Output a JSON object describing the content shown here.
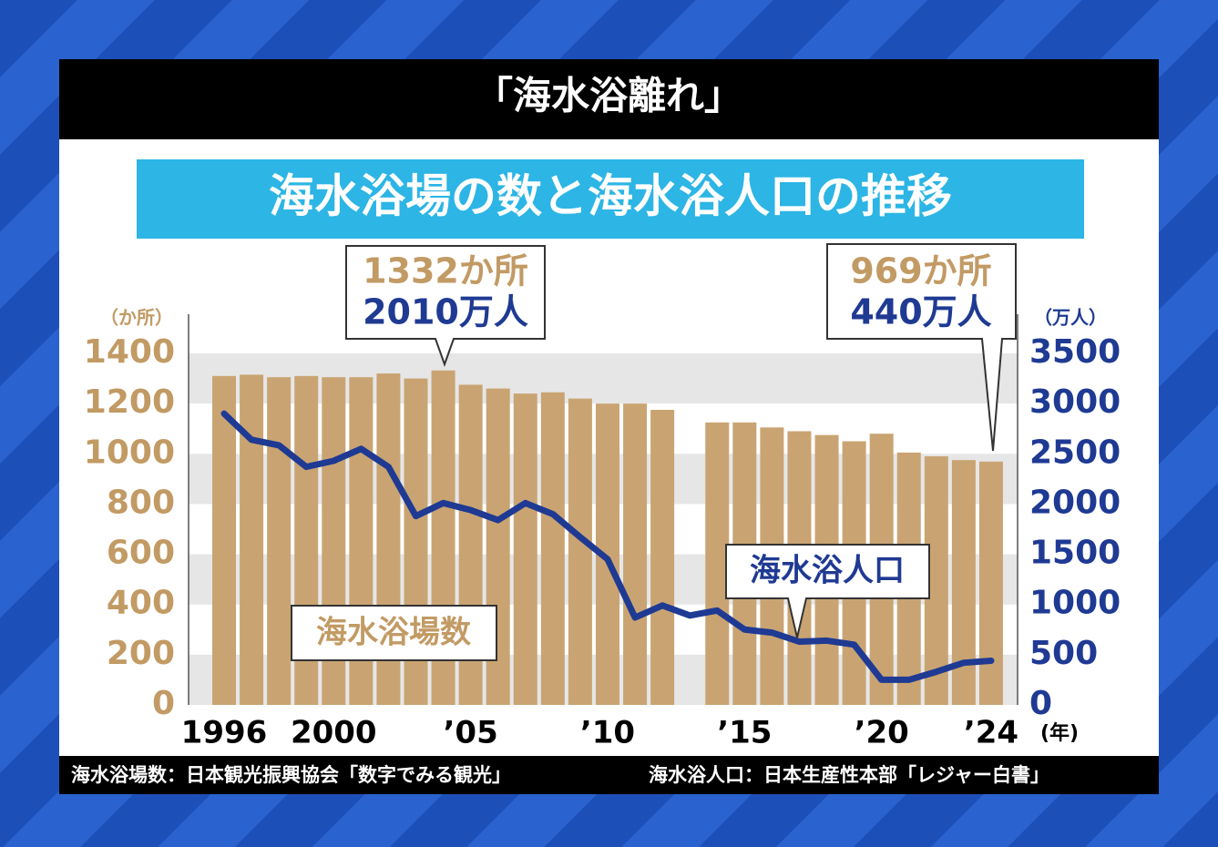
{
  "header": {
    "title": "「海水浴離れ」"
  },
  "chart_data": {
    "type": "bar",
    "title": "海水浴場の数と海水浴人口の推移",
    "categories": [
      "1996",
      null,
      null,
      null,
      "2000",
      null,
      null,
      null,
      null,
      "’05",
      null,
      null,
      null,
      null,
      "’10",
      null,
      null,
      null,
      null,
      "’15",
      null,
      null,
      null,
      null,
      "’20",
      null,
      null,
      null,
      "’24"
    ],
    "x_unit": "(年)",
    "y_unit": "（か所）",
    "y2_unit": "（万人）",
    "series": [
      {
        "name": "海水浴場数",
        "type": "bar",
        "color": "#c9a472",
        "values": [
          1310,
          1315,
          1305,
          1310,
          1305,
          1305,
          1320,
          1300,
          1332,
          1275,
          1260,
          1240,
          1245,
          1220,
          1200,
          1200,
          1175,
          null,
          1125,
          1125,
          1105,
          1090,
          1075,
          1050,
          1080,
          1005,
          990,
          975,
          969
        ]
      },
      {
        "name": "海水浴人口",
        "type": "line",
        "axis": "y2",
        "color": "#1f3a93",
        "values": [
          2900,
          2640,
          2585,
          2370,
          2430,
          2550,
          2370,
          1880,
          2010,
          1940,
          1840,
          2010,
          1900,
          1670,
          1450,
          870,
          990,
          890,
          940,
          750,
          720,
          630,
          640,
          600,
          250,
          250,
          330,
          420,
          440
        ]
      }
    ],
    "ylim": [
      0,
      1400
    ],
    "yticks": [
      0,
      200,
      400,
      600,
      800,
      1000,
      1200,
      1400
    ],
    "y2lim": [
      0,
      3500
    ],
    "y2ticks": [
      0,
      500,
      1000,
      1500,
      2000,
      2500,
      3000,
      3500
    ],
    "annotations": [
      [
        "1332か所",
        "2010万人"
      ],
      [
        "969か所",
        "440万人"
      ]
    ]
  },
  "footer": {
    "left": "海水浴場数：日本観光振興協会「数字でみる観光」",
    "right": "海水浴人口：日本生産性本部「レジャー白書」"
  }
}
